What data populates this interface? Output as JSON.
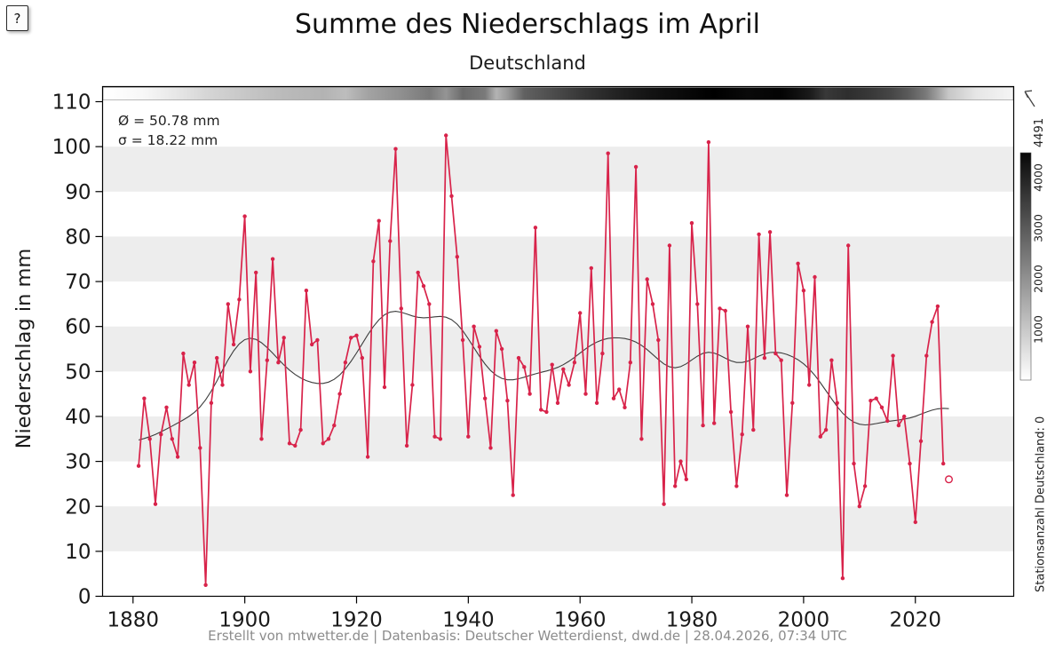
{
  "help_button": {
    "label": "?"
  },
  "header": {
    "title": "Summe des Niederschlags im April",
    "subtitle": "Deutschland"
  },
  "annotations": {
    "mean": "Ø = 50.78 mm",
    "sigma": "σ = 18.22 mm"
  },
  "footer": {
    "text": "Erstellt von mtwetter.de | Datenbasis: Deutscher Wetterdienst, dwd.de | 28.04.2026, 07:34 UTC"
  },
  "colors": {
    "series": "#d8234a",
    "trend": "#3c3c3c",
    "stripe": "#ededed",
    "axis": "#000000",
    "tick_text": "#1a1a1a",
    "annotation_text": "#222222",
    "footer_text": "#8c8c8c"
  },
  "colorbar": {
    "title": "Stationsanzahl Deutschland: 0",
    "max_label": "4491",
    "max": 4491,
    "ticks": [
      1000,
      2000,
      3000,
      4000
    ]
  },
  "chart_data": {
    "type": "line",
    "title": "Summe des Niederschlags im April",
    "subtitle": "Deutschland",
    "xlabel": "",
    "ylabel": "Niederschlag in mm",
    "ylim": [
      0,
      110
    ],
    "yticks": [
      0,
      10,
      20,
      30,
      40,
      50,
      60,
      70,
      80,
      90,
      100,
      110
    ],
    "xticks": [
      1880,
      1900,
      1920,
      1940,
      1960,
      1980,
      2000,
      2020
    ],
    "mean_mm": 50.78,
    "sigma_mm": 18.22,
    "start_year": 1881,
    "values": [
      29,
      44,
      35,
      20.5,
      36,
      42,
      35,
      31,
      54,
      47,
      52,
      33,
      2.5,
      43,
      53,
      47,
      65,
      56,
      66,
      84.5,
      50,
      72,
      35,
      52.5,
      75,
      52,
      57.5,
      34,
      33.5,
      37,
      68,
      56,
      57,
      34,
      35,
      38,
      45,
      52,
      57.5,
      58,
      53,
      31,
      74.5,
      83.5,
      46.5,
      79,
      99.5,
      64,
      33.5,
      47,
      72,
      69,
      65,
      35.5,
      35,
      102.5,
      89,
      75.5,
      57,
      35.5,
      60,
      55.5,
      44,
      33,
      59,
      55,
      43.5,
      22.5,
      53,
      51,
      45,
      82,
      41.5,
      41,
      51.5,
      43,
      50.5,
      47,
      52,
      63,
      45,
      73,
      43,
      54,
      98.5,
      44,
      46,
      42,
      52,
      95.5,
      35,
      70.5,
      65,
      57,
      20.5,
      78,
      24.5,
      30,
      26,
      83,
      65,
      38,
      101,
      38.5,
      64,
      63.5,
      41,
      24.5,
      36,
      60,
      37,
      80.5,
      53,
      81,
      54,
      52.5,
      22.5,
      43,
      74,
      68,
      47,
      71,
      35.5,
      37,
      52.5,
      43,
      4,
      78,
      29.5,
      20,
      24.5,
      43.5,
      44,
      42,
      39,
      53.5,
      38,
      40,
      29.5,
      16.5,
      34.5,
      53.5,
      61,
      64.5,
      29.5
    ],
    "open_point": {
      "year": 2026,
      "value": 26
    },
    "trend_smoothing_sigma_years": 4,
    "station_strip": {
      "description_levels_0_to_1": true,
      "stops": [
        [
          1875,
          0
        ],
        [
          1882,
          0.03
        ],
        [
          1888,
          0.1
        ],
        [
          1893,
          0.16
        ],
        [
          1900,
          0.22
        ],
        [
          1907,
          0.27
        ],
        [
          1914,
          0.3
        ],
        [
          1918,
          0.26
        ],
        [
          1922,
          0.36
        ],
        [
          1928,
          0.44
        ],
        [
          1933,
          0.52
        ],
        [
          1936,
          0.42
        ],
        [
          1939,
          0.58
        ],
        [
          1943,
          0.52
        ],
        [
          1945,
          0.3
        ],
        [
          1947,
          0.4
        ],
        [
          1950,
          0.62
        ],
        [
          1955,
          0.7
        ],
        [
          1960,
          0.78
        ],
        [
          1966,
          0.86
        ],
        [
          1972,
          0.92
        ],
        [
          1978,
          0.96
        ],
        [
          1984,
          1
        ],
        [
          1990,
          0.96
        ],
        [
          1996,
          0.99
        ],
        [
          2001,
          0.9
        ],
        [
          2004,
          0.78
        ],
        [
          2008,
          0.82
        ],
        [
          2012,
          0.78
        ],
        [
          2016,
          0.72
        ],
        [
          2019,
          0.64
        ],
        [
          2022,
          0.52
        ],
        [
          2024,
          0.38
        ],
        [
          2026,
          0.22
        ],
        [
          2031,
          0.1
        ],
        [
          2038,
          0.04
        ]
      ]
    }
  }
}
